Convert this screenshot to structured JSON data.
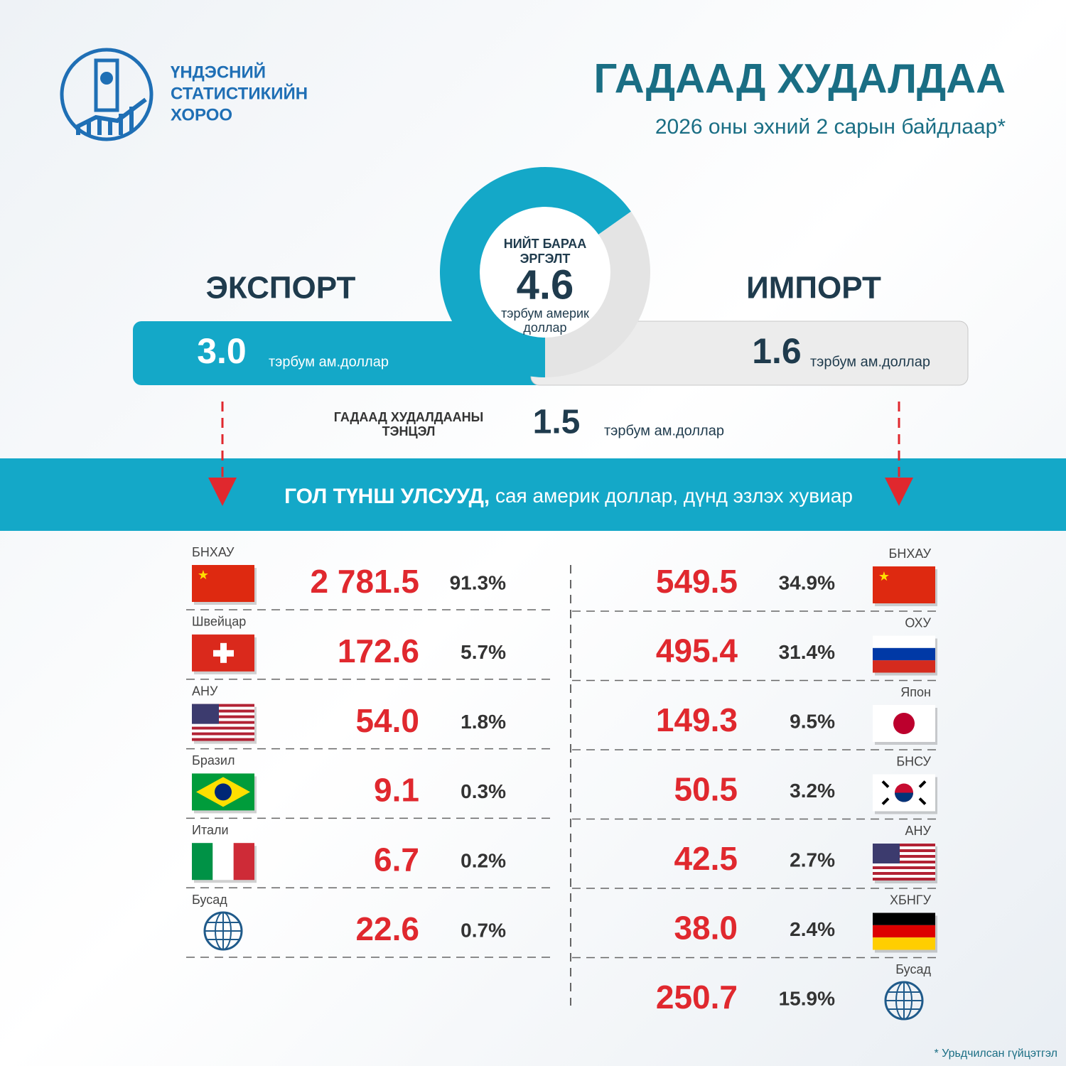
{
  "header": {
    "org": [
      "ҮНДЭСНИЙ",
      "СТАТИСТИКИЙН",
      "ХОРОО"
    ],
    "title": "ГАДААД ХУДАЛДАА",
    "subtitle": "2026 оны эхний 2 сарын байдлаар*"
  },
  "summary": {
    "total": {
      "label": [
        "НИЙТ БАРАА",
        "ЭРГЭЛТ"
      ],
      "value": "4.6",
      "unit": [
        "тэрбум америк",
        "доллар"
      ]
    },
    "export": {
      "label": "ЭКСПОРТ",
      "value": "3.0",
      "unit": "тэрбум ам.доллар"
    },
    "import": {
      "label": "ИМПОРТ",
      "value": "1.6",
      "unit": "тэрбум ам.доллар"
    },
    "balance": {
      "label": [
        "ГАДААД ХУДАЛДААНЫ",
        "ТЭНЦЭЛ"
      ],
      "value": "1.5",
      "unit": "тэрбум ам.доллар"
    }
  },
  "partners": {
    "title": "ГОЛ ТҮНШ УЛСУУД,",
    "subtitle": "сая америк доллар, дүнд эзлэх хувиар",
    "export": [
      {
        "country": "БНХАУ",
        "value": "2 781.5",
        "share": "91.3%"
      },
      {
        "country": "Швейцар",
        "value": "172.6",
        "share": "5.7%"
      },
      {
        "country": "АНУ",
        "value": "54.0",
        "share": "1.8%"
      },
      {
        "country": "Бразил",
        "value": "9.1",
        "share": "0.3%"
      },
      {
        "country": "Итали",
        "value": "6.7",
        "share": "0.2%"
      },
      {
        "country": "Бусад",
        "value": "22.6",
        "share": "0.7%"
      }
    ],
    "import": [
      {
        "country": "БНХАУ",
        "value": "549.5",
        "share": "34.9%"
      },
      {
        "country": "ОХУ",
        "value": "495.4",
        "share": "31.4%"
      },
      {
        "country": "Япон",
        "value": "149.3",
        "share": "9.5%"
      },
      {
        "country": "БНСУ",
        "value": "50.5",
        "share": "3.2%"
      },
      {
        "country": "АНУ",
        "value": "42.5",
        "share": "2.7%"
      },
      {
        "country": "ХБНГУ",
        "value": "38.0",
        "share": "2.4%"
      },
      {
        "country": "Бусад",
        "value": "250.7",
        "share": "15.9%"
      }
    ]
  },
  "footnote": "* Урьдчилсан гүйцэтгэл"
}
